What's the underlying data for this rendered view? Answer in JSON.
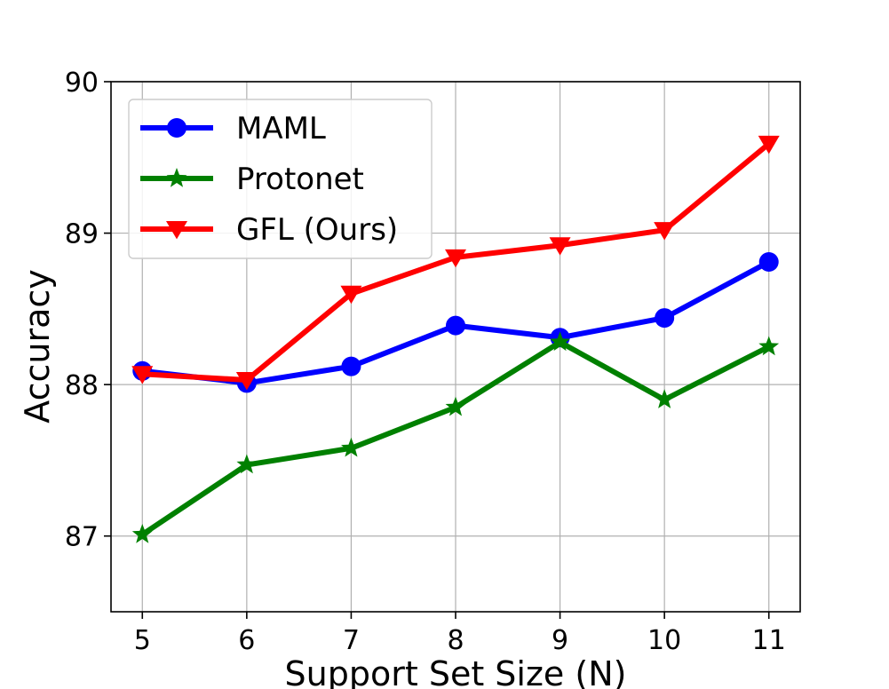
{
  "chart_data": {
    "type": "line",
    "xlabel": "Support Set Size (N)",
    "ylabel": "Accuracy",
    "x": [
      5,
      6,
      7,
      8,
      9,
      10,
      11
    ],
    "xticks": [
      "5",
      "6",
      "7",
      "8",
      "9",
      "10",
      "11"
    ],
    "yticks": [
      "87",
      "88",
      "89",
      "90"
    ],
    "xlim": [
      4.7,
      11.3
    ],
    "ylim": [
      86.5,
      90
    ],
    "grid": true,
    "legend_position": "top-left",
    "series": [
      {
        "name": "MAML",
        "values": [
          88.09,
          88.01,
          88.12,
          88.39,
          88.31,
          88.44,
          88.81
        ],
        "color": "#0000ff",
        "marker": "circle"
      },
      {
        "name": "Protonet",
        "values": [
          87.01,
          87.47,
          87.58,
          87.85,
          88.28,
          87.9,
          88.25
        ],
        "color": "#008000",
        "marker": "star"
      },
      {
        "name": "GFL (Ours)",
        "values": [
          88.07,
          88.03,
          88.6,
          88.84,
          88.92,
          89.02,
          89.59
        ],
        "color": "#ff0000",
        "marker": "triangle-down"
      }
    ]
  }
}
